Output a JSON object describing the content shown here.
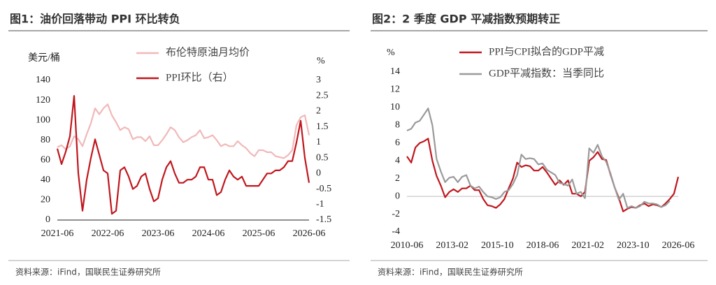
{
  "chart_data": [
    {
      "type": "line",
      "title": "图1：油价回落带动 PPI 环比转负",
      "y_label": "美元/桶",
      "y2_label": "%",
      "source": "资料来源：iFind，国联民生证券研究所",
      "categories": [
        "2021-06",
        null,
        null,
        null,
        null,
        null,
        null,
        null,
        null,
        null,
        null,
        null,
        "2022-06",
        null,
        null,
        null,
        null,
        null,
        null,
        null,
        null,
        null,
        null,
        null,
        "2023-06",
        null,
        null,
        null,
        null,
        null,
        null,
        null,
        null,
        null,
        null,
        null,
        "2024-06",
        null,
        null,
        null,
        null,
        null,
        null,
        null,
        null,
        null,
        null,
        null,
        "2025-06",
        null,
        null,
        null,
        null,
        null,
        null,
        null,
        null,
        null,
        null,
        null,
        "2026-06"
      ],
      "ylim": [
        0,
        140
      ],
      "yticks": [
        0,
        20,
        40,
        60,
        80,
        100,
        120,
        140
      ],
      "y2lim": [
        -1.5,
        3
      ],
      "y2ticks": [
        -1.5,
        -1,
        -0.5,
        0,
        0.5,
        1,
        1.5,
        2,
        2.5,
        3
      ],
      "series": [
        {
          "name": "布伦特原油月均价",
          "color": "#f2b8b8",
          "values": [
            73,
            75,
            71,
            74,
            84,
            81,
            74,
            86,
            97,
            112,
            106,
            112,
            116,
            105,
            98,
            90,
            93,
            91,
            81,
            83,
            83,
            79,
            84,
            75,
            75,
            80,
            86,
            93,
            90,
            83,
            78,
            80,
            83,
            85,
            90,
            82,
            83,
            85,
            80,
            74,
            76,
            74,
            74,
            79,
            75,
            72,
            67,
            64,
            70,
            70,
            68,
            68,
            64,
            63,
            62,
            65,
            70,
            95,
            103,
            105,
            85
          ]
        },
        {
          "name": "PPI环比（右）",
          "color": "#c0171e",
          "axis": "y2",
          "values": [
            0.8,
            0.3,
            0.7,
            1.2,
            2.5,
            0.0,
            -1.2,
            -0.2,
            0.5,
            1.1,
            0.6,
            0.1,
            0.0,
            -1.3,
            -1.2,
            0.1,
            0.2,
            -0.1,
            -0.5,
            -0.4,
            -0.1,
            0.0,
            -0.5,
            -0.9,
            -0.8,
            -0.2,
            0.2,
            0.4,
            0.0,
            -0.3,
            -0.3,
            -0.2,
            -0.2,
            -0.1,
            0.2,
            0.2,
            -0.2,
            -0.2,
            -0.7,
            -0.6,
            -0.2,
            0.1,
            -0.1,
            -0.2,
            -0.1,
            -0.4,
            -0.4,
            -0.4,
            -0.4,
            -0.2,
            0.0,
            0.0,
            0.1,
            0.1,
            0.2,
            0.4,
            0.4,
            1.0,
            1.7,
            0.5,
            -0.3
          ]
        }
      ]
    },
    {
      "type": "line",
      "title": "图2：2 季度 GDP 平减指数预期转正",
      "y_label": "%",
      "source": "资料来源：iFind，国联民生证券研究所",
      "x": [
        "2010-06",
        "2010-09",
        "2010-12",
        "2011-03",
        "2011-06",
        "2011-09",
        "2011-12",
        "2012-03",
        "2012-06",
        "2012-09",
        "2012-12",
        "2013-03",
        "2013-06",
        "2013-09",
        "2013-12",
        "2014-03",
        "2014-06",
        "2014-09",
        "2014-12",
        "2015-03",
        "2015-06",
        "2015-09",
        "2015-12",
        "2016-03",
        "2016-06",
        "2016-09",
        "2016-12",
        "2017-03",
        "2017-06",
        "2017-09",
        "2017-12",
        "2018-03",
        "2018-06",
        "2018-09",
        "2018-12",
        "2019-03",
        "2019-06",
        "2019-09",
        "2019-12",
        "2020-03",
        "2020-06",
        "2020-09",
        "2020-12",
        "2021-03",
        "2021-06",
        "2021-09",
        "2021-12",
        "2022-03",
        "2022-06",
        "2022-09",
        "2022-12",
        "2023-03",
        "2023-06",
        "2023-09",
        "2023-12",
        "2024-03",
        "2024-06",
        "2024-09",
        "2024-12",
        "2025-03",
        "2025-06",
        "2025-09",
        "2025-12",
        "2026-03",
        "2026-06"
      ],
      "xlim": [
        "2010-06",
        "2026-06"
      ],
      "xticks": [
        "2010-06",
        "2013-02",
        "2015-10",
        "2018-06",
        "2021-02",
        "2023-10",
        "2026-06"
      ],
      "ylim": [
        -4,
        14
      ],
      "yticks": [
        -4,
        -2,
        0,
        2,
        4,
        6,
        8,
        10,
        12,
        14
      ],
      "series": [
        {
          "name": "PPI与CPI拟合的GDP平减",
          "color": "#c0171e",
          "values": [
            4.5,
            3.8,
            5.5,
            6.0,
            6.2,
            6.5,
            4.0,
            2.3,
            1.2,
            -0.1,
            0.5,
            0.8,
            0.5,
            0.9,
            0.9,
            1.2,
            0.7,
            0.7,
            -0.3,
            -1.0,
            -1.1,
            -1.3,
            -0.9,
            -0.3,
            0.9,
            2.0,
            3.8,
            3.3,
            3.5,
            3.4,
            2.9,
            2.9,
            3.3,
            2.7,
            2.0,
            1.3,
            1.8,
            1.3,
            1.8,
            0.3,
            0.3,
            0.0,
            0.5,
            4.0,
            4.4,
            5.0,
            4.2,
            4.1,
            2.5,
            1.0,
            -0.2,
            -1.7,
            -1.4,
            -1.2,
            -1.3,
            -1.0,
            -0.8,
            -1.1,
            -0.9,
            -1.0,
            -1.2,
            -0.8,
            -0.3,
            0.3,
            2.2
          ]
        },
        {
          "name": "GDP平减指数：当季同比",
          "color": "#9a9a9a",
          "values": [
            7.4,
            7.6,
            8.3,
            8.5,
            9.2,
            9.9,
            8.0,
            4.2,
            2.8,
            1.6,
            2.1,
            2.2,
            1.6,
            2.2,
            2.4,
            1.2,
            0.9,
            1.1,
            0.5,
            0.0,
            -0.1,
            -0.3,
            -0.1,
            0.5,
            0.7,
            1.4,
            2.4,
            4.7,
            4.2,
            4.3,
            4.2,
            3.6,
            3.7,
            3.0,
            2.7,
            2.4,
            1.5,
            1.4,
            1.2,
            1.9,
            0.3,
            0.5,
            -0.2,
            5.4,
            4.9,
            5.8,
            4.5,
            3.9,
            2.6,
            1.0,
            -0.4,
            0.3,
            -1.3,
            -1.1,
            -1.3,
            -1.1,
            -0.6,
            -0.8,
            -0.8,
            -0.9,
            -1.2,
            -1.0,
            -0.5,
            null,
            null
          ]
        }
      ]
    }
  ]
}
